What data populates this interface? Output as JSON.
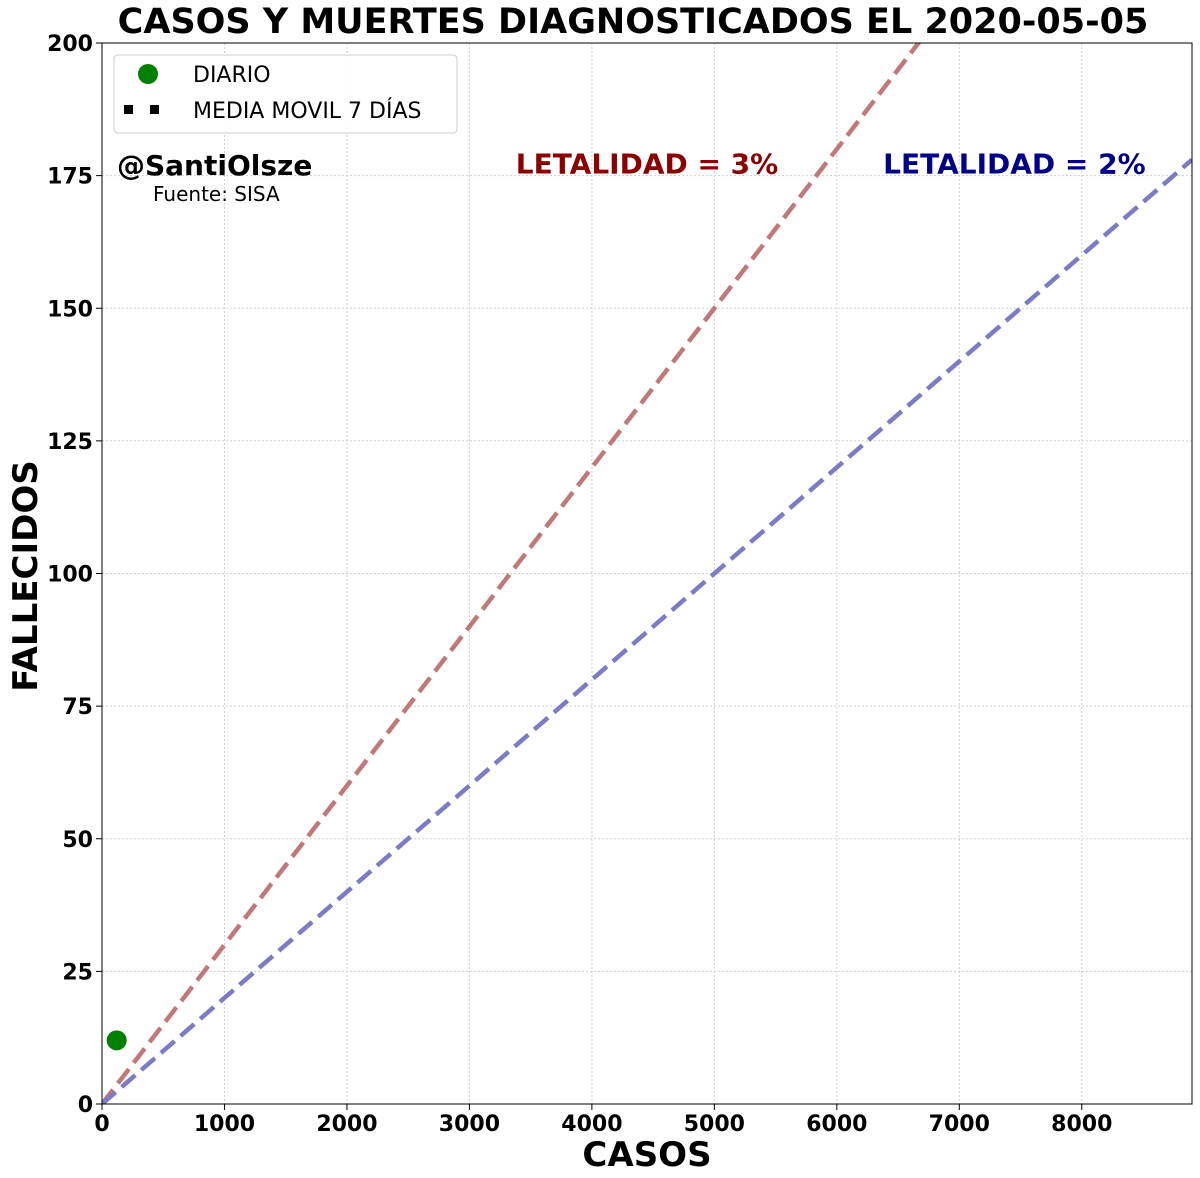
{
  "chart_data": {
    "type": "scatter",
    "title": "CASOS Y MUERTES DIAGNOSTICADOS EL 2020-05-05",
    "xlabel": "CASOS",
    "ylabel": "FALLECIDOS",
    "xlim": [
      0,
      8900
    ],
    "ylim": [
      0,
      200
    ],
    "xticks": [
      0,
      1000,
      2000,
      3000,
      4000,
      5000,
      6000,
      7000,
      8000
    ],
    "yticks": [
      0,
      25,
      50,
      75,
      100,
      125,
      150,
      175,
      200
    ],
    "grid": true,
    "legend_position": "top-left",
    "series": [
      {
        "name": "DIARIO",
        "kind": "points",
        "color": "#008000",
        "points": [
          {
            "x": 120,
            "y": 12
          }
        ]
      },
      {
        "name": "MEDIA MOVIL 7 DÍAS",
        "kind": "dotted-line",
        "color": "#000000",
        "points": []
      }
    ],
    "reference_lines": [
      {
        "label": "LETALIDAD = 3%",
        "slope": 0.03,
        "color": "#c07878",
        "label_color": "#8b0000",
        "label_anchor": {
          "x": 4450,
          "y": 175
        }
      },
      {
        "label": "LETALIDAD = 2%",
        "slope": 0.02,
        "color": "#7b7bc6",
        "label_color": "#00008b",
        "label_anchor": {
          "x": 7450,
          "y": 175
        }
      }
    ],
    "annotations": [
      {
        "text": "@SantiOlsze",
        "style": "big"
      },
      {
        "text": "Fuente: SISA",
        "style": "small"
      }
    ]
  }
}
